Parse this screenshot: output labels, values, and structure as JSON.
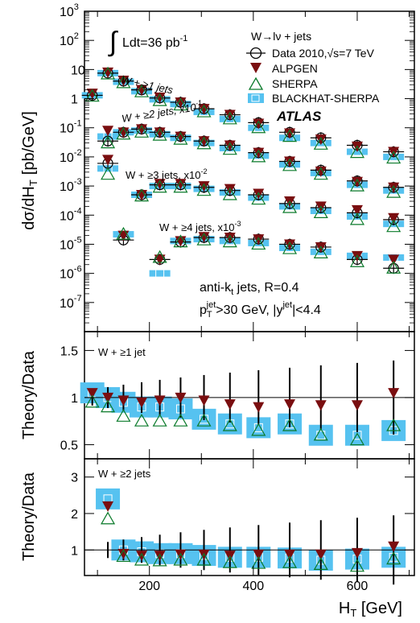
{
  "chart_data": [
    {
      "type": "scatter",
      "panel": "main",
      "ylog": true,
      "ylim": [
        1e-08,
        1000
      ],
      "xlim": [
        75,
        710
      ],
      "ylabel": "dσ/dH",
      "ylabel_sub": "T",
      "ylabel_unit": "[pb/GeV]",
      "y_ticks": [
        {
          "value": 1000,
          "label": "10",
          "exp": "3"
        },
        {
          "value": 100,
          "label": "10",
          "exp": "2"
        },
        {
          "value": 10,
          "label": "10",
          "exp": ""
        },
        {
          "value": 1,
          "label": "1",
          "exp": ""
        },
        {
          "value": 0.1,
          "label": "10",
          "exp": "-1"
        },
        {
          "value": 0.01,
          "label": "10",
          "exp": "-2"
        },
        {
          "value": 0.001,
          "label": "10",
          "exp": "-3"
        },
        {
          "value": 0.0001,
          "label": "10",
          "exp": "-4"
        },
        {
          "value": 1e-05,
          "label": "10",
          "exp": "-5"
        },
        {
          "value": 1e-06,
          "label": "10",
          "exp": "-6"
        },
        {
          "value": 1e-07,
          "label": "10",
          "exp": "-7"
        }
      ],
      "legend": {
        "title": "W→lν + jets",
        "entries": [
          "Data 2010,√s=7 TeV",
          "ALPGEN",
          "SHERPA",
          "BLACKHAT-SHERPA"
        ]
      },
      "annotations": {
        "luminosity": "Ldt=36 pb",
        "luminosity_exp": "-1",
        "experiment": "ATLAS",
        "jet_algo": "anti-k",
        "jet_algo_sub": "t",
        "jet_algo_rest": " jets, R=0.4",
        "jet_cuts_p": "p",
        "jet_cuts_sub": "T",
        "jet_cuts_sup": "jet",
        "jet_cuts_mid": ">30 GeV, |y",
        "jet_cuts_sup2": "jet",
        "jet_cuts_end": "|<4.4"
      },
      "series": [
        {
          "name": "W + ≥1 jets",
          "label": "W + ≥1 jets",
          "x": [
            90,
            120,
            150,
            185,
            220,
            260,
            305,
            355,
            410,
            470,
            530,
            600,
            670
          ],
          "data": [
            1.3,
            7.5,
            4.0,
            2.0,
            1.05,
            0.75,
            0.45,
            0.28,
            0.15,
            0.07,
            0.045,
            0.025,
            0.015
          ],
          "alpgen": [
            1.5,
            8.0,
            4.2,
            2.0,
            1.1,
            0.75,
            0.45,
            0.28,
            0.14,
            0.065,
            0.04,
            0.023,
            0.015
          ],
          "sherpa": [
            1.2,
            7.0,
            3.5,
            1.7,
            0.85,
            0.6,
            0.35,
            0.2,
            0.1,
            0.05,
            0.027,
            0.014,
            0.009
          ],
          "blackhat": [
            1.3,
            7.5,
            3.8,
            1.8,
            0.95,
            0.65,
            0.35,
            0.2,
            0.1,
            0.045,
            0.03,
            0.015,
            0.01
          ]
        },
        {
          "name": "W + ≥2 jets, x10^-1",
          "label": "W + ≥2 jets, x10",
          "label_exp": "-1",
          "x": [
            120,
            150,
            185,
            220,
            260,
            305,
            355,
            410,
            470,
            530,
            600,
            670
          ],
          "data": [
            0.035,
            0.07,
            0.09,
            0.07,
            0.05,
            0.035,
            0.025,
            0.014,
            0.007,
            0.0035,
            0.0015,
            0.0009
          ],
          "alpgen": [
            0.08,
            0.07,
            0.09,
            0.07,
            0.05,
            0.035,
            0.025,
            0.014,
            0.007,
            0.0032,
            0.0014,
            0.0009
          ],
          "sherpa": [
            0.03,
            0.06,
            0.07,
            0.055,
            0.04,
            0.028,
            0.018,
            0.01,
            0.005,
            0.0025,
            0.001,
            0.0006
          ],
          "blackhat": [
            0.05,
            0.07,
            0.08,
            0.06,
            0.045,
            0.03,
            0.02,
            0.011,
            0.0055,
            0.0028,
            0.0011,
            0.0007
          ]
        },
        {
          "name": "W + ≥3 jets, x10^-2",
          "label": "W + ≥3 jets, x10",
          "label_exp": "-2",
          "x": [
            120,
            185,
            220,
            260,
            305,
            355,
            410,
            470,
            530,
            600,
            670
          ],
          "data": [
            0.006,
            0.0005,
            0.0011,
            0.0011,
            0.0009,
            0.0007,
            0.0005,
            0.00025,
            0.00018,
            0.00012,
            7e-05
          ],
          "alpgen": [
            0.008,
            0.0005,
            0.0012,
            0.0012,
            0.001,
            0.0008,
            0.00055,
            0.0003,
            0.0002,
            0.00015,
            8e-05
          ],
          "sherpa": [
            0.0025,
            0.00045,
            0.0009,
            0.0009,
            0.0007,
            0.0005,
            0.00035,
            0.00018,
            0.00012,
            7e-05,
            4e-05
          ],
          "blackhat": [
            0.004,
            0.0005,
            0.001,
            0.001,
            0.0008,
            0.0006,
            0.0004,
            0.0002,
            0.00014,
            9e-05,
            5e-05
          ]
        },
        {
          "name": "W + ≥4 jets, x10^-3",
          "label": "W + ≥4 jets, x10",
          "label_exp": "-3",
          "x": [
            150,
            220,
            260,
            305,
            355,
            410,
            470,
            530,
            600,
            670
          ],
          "data": [
            1.4e-05,
            3e-06,
            1.2e-05,
            1.7e-05,
            1.7e-05,
            1.5e-05,
            1e-05,
            8e-06,
            3e-06,
            1.5e-06
          ],
          "alpgen": [
            2e-05,
            3e-06,
            1.3e-05,
            1.8e-05,
            1.7e-05,
            1.5e-05,
            1e-05,
            8e-06,
            4e-06,
            3e-06
          ],
          "sherpa": [
            2.2e-05,
            3.5e-06,
            1.2e-05,
            1.4e-05,
            1.2e-05,
            1e-05,
            7e-06,
            5e-06,
            2.5e-06,
            1.5e-06
          ],
          "blackhat": [
            2.2e-05,
            1e-06,
            1.3e-05,
            1.5e-05,
            1.3e-05,
            1.1e-05,
            7.5e-06,
            5.5e-06,
            4e-06,
            3.5e-06
          ]
        }
      ]
    },
    {
      "type": "scatter",
      "panel": "ratio1",
      "label": "W + ≥1 jet",
      "ylabel": "Theory/Data",
      "ylim": [
        0.35,
        1.7
      ],
      "y_ticks": [
        {
          "value": 1.5,
          "label": "1.5"
        },
        {
          "value": 1,
          "label": "1"
        },
        {
          "value": 0.5,
          "label": "0.5"
        }
      ],
      "x": [
        90,
        120,
        150,
        185,
        220,
        260,
        305,
        355,
        410,
        470,
        530,
        600,
        670
      ],
      "alpgen": [
        1.05,
        1.0,
        0.97,
        0.95,
        0.97,
        1.0,
        0.97,
        0.93,
        0.9,
        0.93,
        0.92,
        0.92,
        1.05
      ],
      "sherpa": [
        0.95,
        0.9,
        0.8,
        0.75,
        0.75,
        0.75,
        0.75,
        0.7,
        0.65,
        0.7,
        0.6,
        0.55,
        0.7
      ],
      "blackhat": [
        1.05,
        1.0,
        0.95,
        0.9,
        0.9,
        0.88,
        0.77,
        0.72,
        0.68,
        0.72,
        0.6,
        0.6,
        0.65
      ]
    },
    {
      "type": "scatter",
      "panel": "ratio2",
      "label": "W + ≥2 jets",
      "ylabel": "Theory/Data",
      "ylim": [
        0.3,
        3.5
      ],
      "y_ticks": [
        {
          "value": 3,
          "label": "3"
        },
        {
          "value": 2,
          "label": "2"
        },
        {
          "value": 1,
          "label": "1"
        }
      ],
      "xlabel": "H",
      "xlabel_sub": "T",
      "xlabel_unit": " [GeV]",
      "x_ticks": [
        {
          "value": 200,
          "label": "200"
        },
        {
          "value": 400,
          "label": "400"
        },
        {
          "value": 600,
          "label": "600"
        }
      ],
      "x": [
        120,
        150,
        185,
        220,
        260,
        305,
        355,
        410,
        470,
        530,
        600,
        670
      ],
      "alpgen": [
        2.2,
        0.9,
        0.85,
        0.85,
        0.88,
        0.88,
        0.85,
        0.88,
        0.88,
        0.88,
        0.92,
        1.1
      ],
      "sherpa": [
        1.85,
        0.82,
        0.72,
        0.7,
        0.72,
        0.72,
        0.65,
        0.63,
        0.65,
        0.6,
        0.55,
        0.75
      ],
      "blackhat": [
        2.4,
        1.0,
        0.95,
        0.9,
        0.9,
        0.85,
        0.8,
        0.8,
        0.78,
        0.72,
        0.75,
        0.8
      ]
    }
  ],
  "colors": {
    "alpgen": "#7a0e10",
    "blackhat": "#56c2f0",
    "sherpa": "#0a7a2a",
    "data": "#000000"
  }
}
